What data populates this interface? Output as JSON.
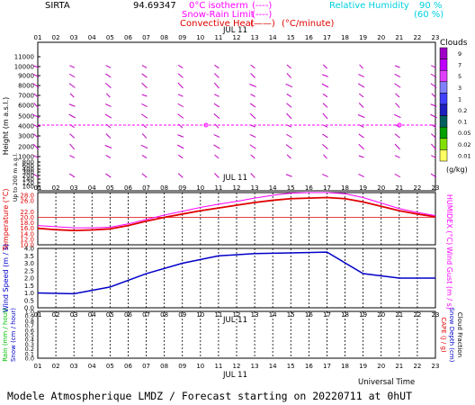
{
  "header": {
    "station": "SIRTA",
    "value_text": "94.69347",
    "zero_isotherm": "0°C isotherm",
    "snow_rain_limit": "Snow-Rain Limit",
    "convective_heat": "Convective Heat",
    "convective_unit": "(°C/minute)",
    "legend_sample_dashed": "(----)",
    "legend_sample_dashed2": "(----)",
    "legend_sample_solid": "(——)",
    "rh_label": "Relative Humidity",
    "rh_90": "90 %",
    "rh_60": "(60 %)"
  },
  "footer": {
    "universal_time": "Universal Time",
    "caption": "Modele Atmospherique LMDZ / Forecast starting on 20220711 at 0hUT"
  },
  "time_axis": {
    "hours": [
      "01",
      "02",
      "03",
      "04",
      "05",
      "06",
      "07",
      "08",
      "09",
      "10",
      "11",
      "12",
      "13",
      "14",
      "15",
      "16",
      "17",
      "18",
      "19",
      "20",
      "21",
      "22",
      "23"
    ],
    "date_label": "JUL 11"
  },
  "clouds_scale": {
    "title": "Clouds",
    "unit": "(g/kg)",
    "labels": [
      "9",
      "7",
      "5",
      "3",
      "1",
      "0.2",
      "0.1",
      "0.05",
      "0.02",
      "0.01"
    ],
    "colors": [
      "#a000c8",
      "#c000ff",
      "#e040ff",
      "#8080ff",
      "#4040ff",
      "#2020c0",
      "#006060",
      "#00a000",
      "#80e000",
      "#ffff60"
    ]
  },
  "colors": {
    "magenta": "#ff00ff",
    "red": "#e00000",
    "blue": "#0000c8",
    "cyan": "#00d0e0",
    "wind_arrow": "#c000c0"
  },
  "chart_data": [
    {
      "type": "scatter",
      "name_panel": "height-panel",
      "ylabel": "Height (m a.s.l.)",
      "ylabel_sub": "Up to 200 m a.g.l.",
      "yticks": [
        "11000",
        "10000",
        "9000",
        "8000",
        "7000",
        "6000",
        "5000",
        "4000",
        "3000",
        "2000",
        "1000",
        "800",
        "600",
        "400",
        "300",
        "200",
        "140",
        "120",
        "100"
      ],
      "zero_isotherm_height_m": 3700,
      "wind_levels_m": [
        10000,
        9000,
        8000,
        7000,
        6000,
        5000,
        4000,
        3000,
        2000,
        1000,
        200
      ],
      "wind_hours": [
        1,
        3,
        5,
        7,
        9,
        11,
        13,
        15,
        17,
        19,
        21,
        23
      ]
    },
    {
      "type": "line",
      "name_panel": "temperature-panel",
      "ylabel": "Temperature (°C)",
      "ylabel_right": "HUMIDEX (°C)",
      "yticks": [
        "28.0",
        "26.0",
        "22.0",
        "20.0",
        "18.0",
        "16.0",
        "14.0",
        "12.0",
        "10.0"
      ],
      "ylim": [
        10,
        29
      ],
      "x": [
        1,
        2,
        3,
        4,
        5,
        6,
        7,
        8,
        9,
        10,
        11,
        12,
        13,
        14,
        15,
        16,
        17,
        18,
        19,
        20,
        21,
        22,
        23
      ],
      "series": [
        {
          "name": "Temperature",
          "values": [
            16.0,
            15.5,
            15.2,
            15.4,
            15.8,
            17.0,
            18.6,
            20.0,
            21.2,
            22.4,
            23.4,
            24.4,
            25.4,
            26.2,
            26.8,
            27.0,
            27.2,
            26.8,
            25.6,
            24.0,
            22.4,
            21.2,
            20.2
          ]
        },
        {
          "name": "HUMIDEX",
          "values": [
            17.0,
            16.6,
            16.2,
            16.2,
            16.4,
            17.6,
            19.2,
            20.8,
            22.2,
            23.6,
            24.8,
            25.8,
            27.0,
            28.0,
            28.8,
            29.0,
            29.0,
            28.6,
            27.2,
            25.2,
            23.2,
            21.8,
            20.6
          ]
        }
      ],
      "reference_line": 20.0
    },
    {
      "type": "line",
      "name_panel": "wind-panel",
      "ylabel": "Wind Speed (m / s)",
      "ylabel_right": "Wind Gust (m / s)",
      "yticks": [
        "4.0",
        "3.5",
        "3.0",
        "2.5",
        "2.0",
        "1.5",
        "1.0",
        "0.5",
        "0.0"
      ],
      "ylim": [
        0,
        4
      ],
      "x": [
        1,
        3,
        5,
        7,
        9,
        11,
        13,
        15,
        17,
        19,
        21,
        23
      ],
      "series": [
        {
          "name": "Wind Speed",
          "values": [
            1.0,
            0.95,
            1.4,
            2.3,
            3.0,
            3.5,
            3.65,
            3.7,
            3.75,
            2.3,
            2.0,
            2.0
          ]
        }
      ]
    },
    {
      "type": "bar",
      "name_panel": "rain-panel",
      "ylabel_rain": "Rain (mm / hour)",
      "ylabel_snow": "Snow (cm / hour)",
      "ylabel_cape": "CAPE (J / g)",
      "ylabel_snowdepth": "Snow Depth (cm)",
      "ylabel_cloudfrac": "Cloud Fraction",
      "yticks": [
        "1.0",
        "0.9",
        "0.8",
        "0.7",
        "0.6",
        "0.5",
        "0.4",
        "0.3",
        "0.2",
        "0.1",
        "0.0"
      ],
      "ylim": [
        0,
        1
      ],
      "x": [
        1,
        2,
        3,
        4,
        5,
        6,
        7,
        8,
        9,
        10,
        11,
        12,
        13,
        14,
        15,
        16,
        17,
        18,
        19,
        20,
        21,
        22,
        23
      ],
      "values": [
        0,
        0,
        0,
        0,
        0,
        0,
        0,
        0,
        0,
        0,
        0,
        0,
        0,
        0,
        0,
        0,
        0,
        0,
        0,
        0,
        0,
        0,
        0
      ]
    }
  ]
}
